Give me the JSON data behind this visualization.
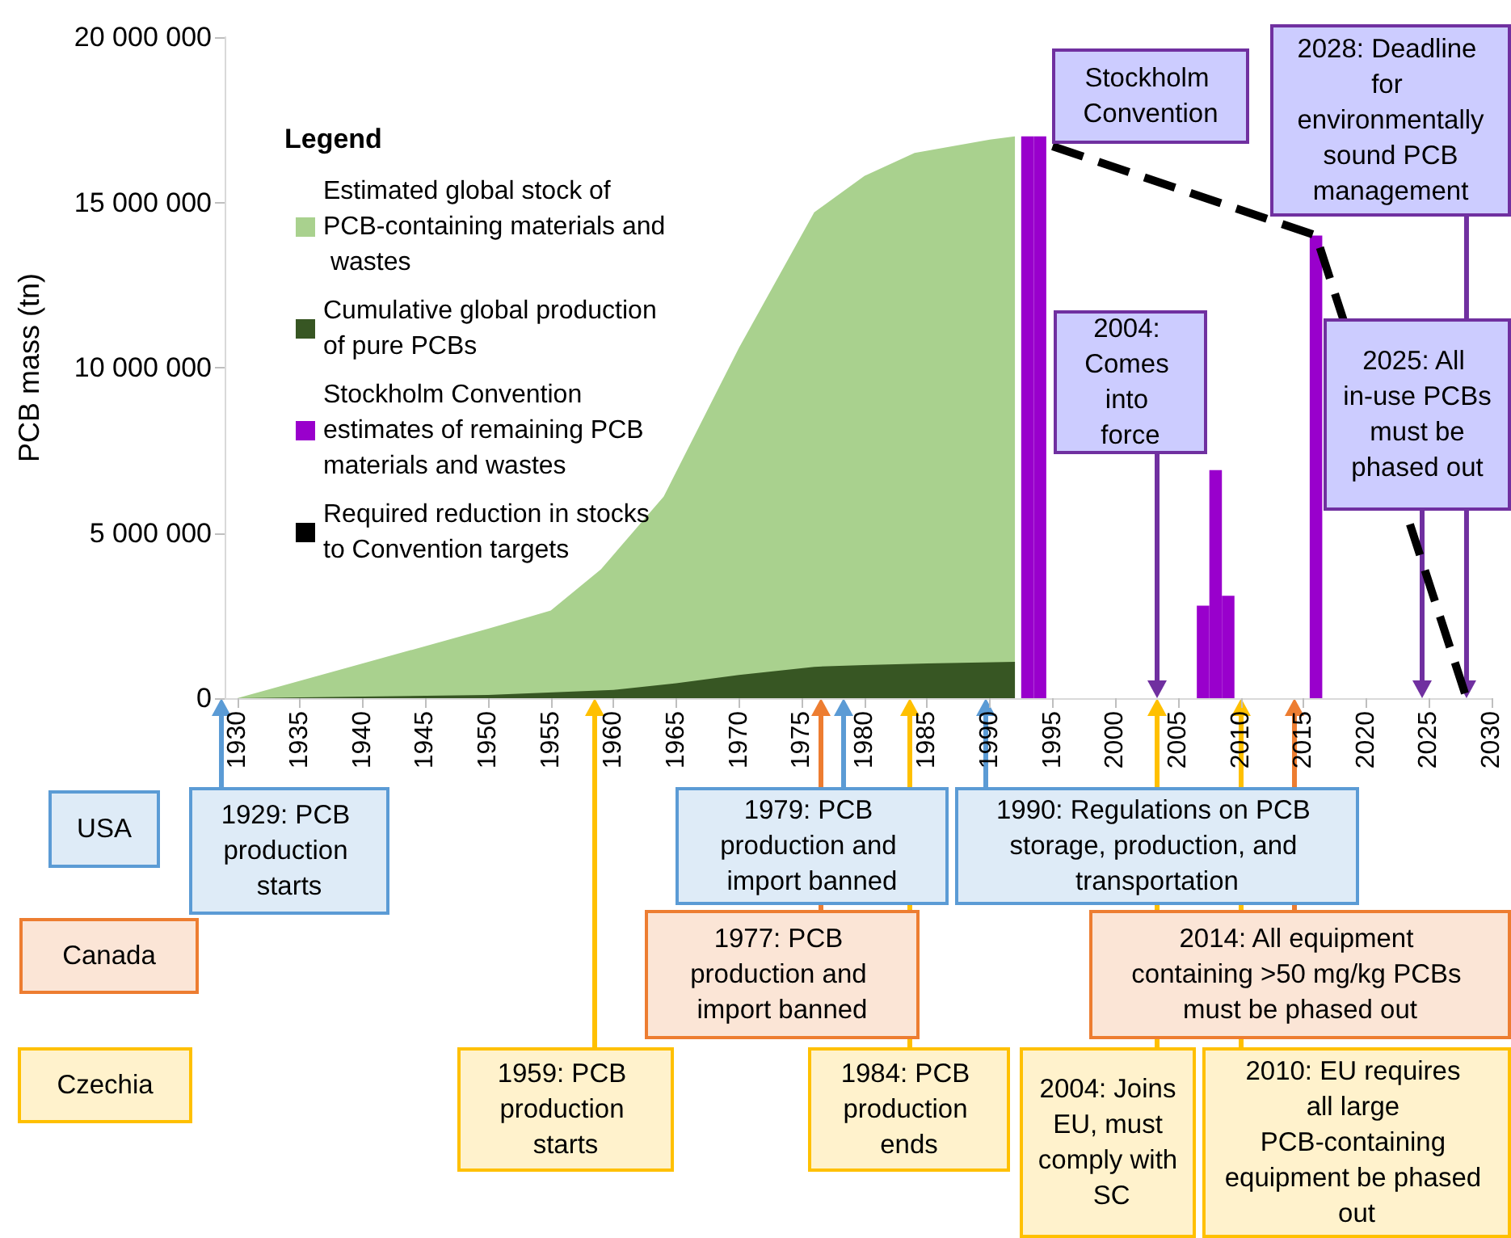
{
  "chart_data": {
    "type": "area",
    "ylabel": "PCB mass (tn)",
    "legend_title": "Legend",
    "legend": "left",
    "marker": "none",
    "xlim": [
      1929,
      2030
    ],
    "xticks": [
      1930,
      1935,
      1940,
      1945,
      1950,
      1955,
      1960,
      1965,
      1970,
      1975,
      1980,
      1985,
      1990,
      1995,
      2000,
      2005,
      2010,
      2015,
      2020,
      2025,
      2030
    ],
    "ylim": [
      0,
      20000000
    ],
    "yticks": [
      {
        "value": 0,
        "label": "0"
      },
      {
        "value": 5000000,
        "label": "5 000 000"
      },
      {
        "value": 10000000,
        "label": "10 000 000"
      },
      {
        "value": 15000000,
        "label": "15 000 000"
      },
      {
        "value": 20000000,
        "label": "20 000 000"
      }
    ],
    "series": [
      {
        "name": "Estimated global stock of PCB-containing materials and wastes",
        "color": "#a9d18e",
        "x": [
          1930,
          1940,
          1950,
          1955,
          1959,
          1964,
          1970,
          1976,
          1980,
          1984,
          1990,
          1992
        ],
        "values": [
          0,
          1050000,
          2100000,
          2650000,
          3900000,
          6100000,
          10600000,
          14700000,
          15800000,
          16500000,
          16900000,
          17000000
        ]
      },
      {
        "name": "Cumulative global production of pure PCBs",
        "color": "#375623",
        "x": [
          1930,
          1950,
          1960,
          1965,
          1970,
          1976,
          1980,
          1985,
          1992
        ],
        "values": [
          0,
          100000,
          250000,
          450000,
          700000,
          950000,
          1000000,
          1050000,
          1100000
        ]
      },
      {
        "name": "Stockholm Convention estimates of remaining PCB materials and wastes",
        "type": "bar",
        "color": "#9900cc",
        "x": [
          1993,
          1994,
          2007,
          2008,
          2009,
          2016
        ],
        "values": [
          17000000,
          17000000,
          2800000,
          6900000,
          3100000,
          14000000
        ]
      },
      {
        "name": "Required reduction in stocks to Convention targets",
        "type": "line",
        "line_style": "dashed",
        "color": "#000000",
        "x": [
          1995,
          2016,
          2028
        ],
        "values": [
          16700000,
          14000000,
          0
        ]
      }
    ],
    "annotations": [
      "Stockholm Convention",
      "2004: Comes into force",
      "2025: All in-use PCBs must be phased out",
      {
        "text": "2028: Deadline for environmentally sound PCB management",
        "x": 2028,
        "y": 0
      },
      "USA",
      "Canada",
      "Czechia",
      "1929: PCB production starts",
      "1979: PCB production and import banned",
      "1990: Regulations on PCB storage, production, and transportation",
      "1977: PCB production and import banned",
      "2014: All equipment containing >50 mg/kg PCBs must be phased out",
      "1959: PCB production starts",
      "1984: PCB production ends",
      "2004: Joins EU, must comply with SC",
      "2010: EU requires all large PCB-containing equipment be phased out"
    ]
  }
}
